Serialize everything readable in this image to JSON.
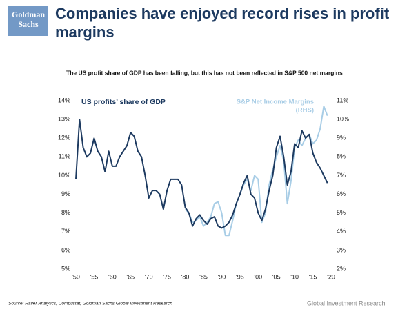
{
  "brand": {
    "line1": "Goldman",
    "line2": "Sachs"
  },
  "footer": {
    "source": "Source: Haver Analytics, Compustat, Goldman Sachs Global Investment Research",
    "credit": "Global Investment Research"
  },
  "chart_data": {
    "type": "line",
    "title": "Companies have enjoyed record rises in profit margins",
    "subtitle": "The US profit share of GDP has been falling, but this has not been reflected in S&P 500 net margins",
    "x": [
      1950,
      1951,
      1952,
      1953,
      1954,
      1955,
      1956,
      1957,
      1958,
      1959,
      1960,
      1961,
      1962,
      1963,
      1964,
      1965,
      1966,
      1967,
      1968,
      1969,
      1970,
      1971,
      1972,
      1973,
      1974,
      1975,
      1976,
      1977,
      1978,
      1979,
      1980,
      1981,
      1982,
      1983,
      1984,
      1985,
      1986,
      1987,
      1988,
      1989,
      1990,
      1991,
      1992,
      1993,
      1994,
      1995,
      1996,
      1997,
      1998,
      1999,
      2000,
      2001,
      2002,
      2003,
      2004,
      2005,
      2006,
      2007,
      2008,
      2009,
      2010,
      2011,
      2012,
      2013,
      2014,
      2015,
      2016,
      2017,
      2018,
      2019
    ],
    "series": [
      {
        "name": "US profits’ share of GDP",
        "color": "#1d3a60",
        "axis": "y",
        "values": [
          9.8,
          13.0,
          11.5,
          11.0,
          11.2,
          12.0,
          11.3,
          11.0,
          10.2,
          11.3,
          10.5,
          10.5,
          11.0,
          11.3,
          11.6,
          12.3,
          12.1,
          11.3,
          11.0,
          10.0,
          8.8,
          9.2,
          9.2,
          9.0,
          8.2,
          9.2,
          9.8,
          9.8,
          9.8,
          9.5,
          8.3,
          8.0,
          7.3,
          7.7,
          7.9,
          7.6,
          7.4,
          7.7,
          7.8,
          7.3,
          7.2,
          7.3,
          7.5,
          7.9,
          8.5,
          9.0,
          9.6,
          10.0,
          9.0,
          8.8,
          8.0,
          7.6,
          8.2,
          9.2,
          10.0,
          11.5,
          12.1,
          11.0,
          9.5,
          10.2,
          11.7,
          11.5,
          12.4,
          12.0,
          12.2,
          11.2,
          10.7,
          10.4,
          10.0,
          9.6
        ]
      },
      {
        "name": "S&P Net Income Margins",
        "axis_note": "(RHS)",
        "color": "#a8cde6",
        "axis": "y2",
        "values": [
          null,
          null,
          null,
          null,
          null,
          null,
          null,
          null,
          null,
          null,
          null,
          null,
          null,
          null,
          null,
          null,
          null,
          null,
          null,
          null,
          null,
          null,
          null,
          null,
          null,
          null,
          null,
          null,
          null,
          null,
          5.2,
          5.0,
          4.5,
          4.6,
          4.8,
          4.3,
          4.5,
          4.8,
          5.5,
          5.6,
          5.0,
          3.8,
          3.8,
          4.6,
          5.5,
          6.0,
          6.5,
          6.8,
          6.2,
          7.0,
          6.8,
          4.5,
          5.0,
          6.5,
          7.3,
          8.0,
          8.6,
          7.8,
          5.5,
          6.7,
          8.5,
          8.9,
          8.6,
          9.0,
          9.2,
          8.7,
          8.9,
          9.5,
          10.7,
          10.2
        ]
      }
    ],
    "xlim": [
      1950,
      2020
    ],
    "xticks": [
      {
        "value": 1950,
        "label": "'50"
      },
      {
        "value": 1955,
        "label": "'55"
      },
      {
        "value": 1960,
        "label": "'60"
      },
      {
        "value": 1965,
        "label": "'65"
      },
      {
        "value": 1970,
        "label": "'70"
      },
      {
        "value": 1975,
        "label": "'75"
      },
      {
        "value": 1980,
        "label": "'80"
      },
      {
        "value": 1985,
        "label": "'85"
      },
      {
        "value": 1990,
        "label": "'90"
      },
      {
        "value": 1995,
        "label": "'95"
      },
      {
        "value": 2000,
        "label": "'00"
      },
      {
        "value": 2005,
        "label": "'05"
      },
      {
        "value": 2010,
        "label": "'10"
      },
      {
        "value": 2015,
        "label": "'15"
      },
      {
        "value": 2020,
        "label": "'20"
      }
    ],
    "ylim": [
      5,
      14
    ],
    "yticks": [
      {
        "value": 5,
        "label": "5%"
      },
      {
        "value": 6,
        "label": "6%"
      },
      {
        "value": 7,
        "label": "7%"
      },
      {
        "value": 8,
        "label": "8%"
      },
      {
        "value": 9,
        "label": "9%"
      },
      {
        "value": 10,
        "label": "10%"
      },
      {
        "value": 11,
        "label": "11%"
      },
      {
        "value": 12,
        "label": "12%"
      },
      {
        "value": 13,
        "label": "13%"
      },
      {
        "value": 14,
        "label": "14%"
      }
    ],
    "y2lim": [
      2,
      11
    ],
    "y2ticks": [
      {
        "value": 2,
        "label": "2%"
      },
      {
        "value": 3,
        "label": "3%"
      },
      {
        "value": 4,
        "label": "4%"
      },
      {
        "value": 5,
        "label": "5%"
      },
      {
        "value": 6,
        "label": "6%"
      },
      {
        "value": 7,
        "label": "7%"
      },
      {
        "value": 8,
        "label": "8%"
      },
      {
        "value": 9,
        "label": "9%"
      },
      {
        "value": 10,
        "label": "10%"
      },
      {
        "value": 11,
        "label": "11%"
      }
    ]
  }
}
